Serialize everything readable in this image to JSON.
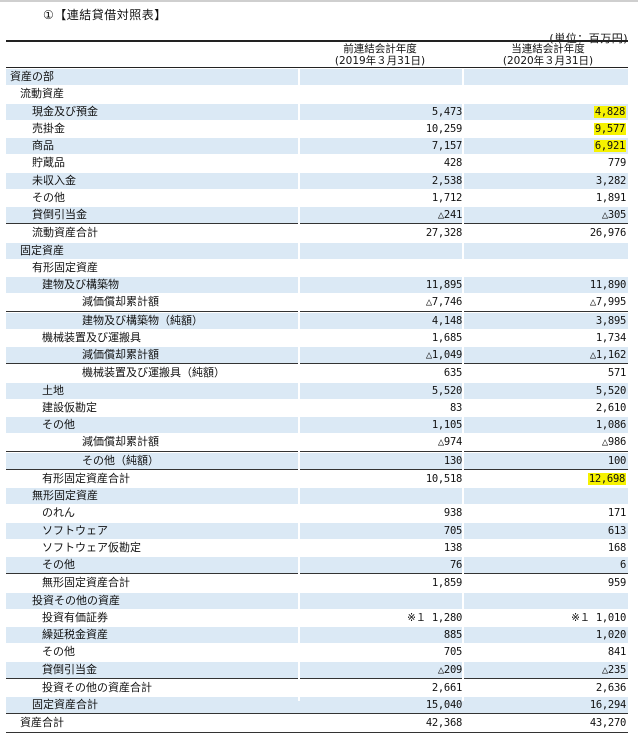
{
  "title": "①【連結貸借対照表】",
  "unit": "(単位：百万円)",
  "headers": {
    "prev_line1": "前連結会計年度",
    "prev_line2": "(2019年３月31日)",
    "curr_line1": "当連結会計年度",
    "curr_line2": "(2020年３月31日)"
  },
  "rows": [
    {
      "label": "資産の部",
      "indent": 0,
      "prev": "",
      "curr": ""
    },
    {
      "label": "流動資産",
      "indent": 1,
      "prev": "",
      "curr": ""
    },
    {
      "label": "現金及び預金",
      "indent": 2,
      "prev": "5,473",
      "curr": "4,828",
      "highlight": true
    },
    {
      "label": "売掛金",
      "indent": 2,
      "prev": "10,259",
      "curr": "9,577",
      "highlight": true
    },
    {
      "label": "商品",
      "indent": 2,
      "prev": "7,157",
      "curr": "6,921",
      "highlight": true
    },
    {
      "label": "貯蔵品",
      "indent": 2,
      "prev": "428",
      "curr": "779"
    },
    {
      "label": "未収入金",
      "indent": 2,
      "prev": "2,538",
      "curr": "3,282"
    },
    {
      "label": "その他",
      "indent": 2,
      "prev": "1,712",
      "curr": "1,891"
    },
    {
      "label": "貸倒引当金",
      "indent": 2,
      "prev": "△241",
      "curr": "△305",
      "bottom": true
    },
    {
      "label": "流動資産合計",
      "indent": 2,
      "prev": "27,328",
      "curr": "26,976"
    },
    {
      "label": "固定資産",
      "indent": 1,
      "prev": "",
      "curr": ""
    },
    {
      "label": "有形固定資産",
      "indent": 2,
      "prev": "",
      "curr": ""
    },
    {
      "label": "建物及び構築物",
      "indent": 3,
      "prev": "11,895",
      "curr": "11,890"
    },
    {
      "label": "減価償却累計額",
      "indent": 4,
      "prev": "△7,746",
      "curr": "△7,995",
      "bottom": true
    },
    {
      "label": "建物及び構築物（純額）",
      "indent": 4,
      "prev": "4,148",
      "curr": "3,895"
    },
    {
      "label": "機械装置及び運搬具",
      "indent": 3,
      "prev": "1,685",
      "curr": "1,734"
    },
    {
      "label": "減価償却累計額",
      "indent": 4,
      "prev": "△1,049",
      "curr": "△1,162",
      "bottom": true
    },
    {
      "label": "機械装置及び運搬具（純額）",
      "indent": 4,
      "prev": "635",
      "curr": "571"
    },
    {
      "label": "土地",
      "indent": 3,
      "prev": "5,520",
      "curr": "5,520"
    },
    {
      "label": "建設仮勘定",
      "indent": 3,
      "prev": "83",
      "curr": "2,610"
    },
    {
      "label": "その他",
      "indent": 3,
      "prev": "1,105",
      "curr": "1,086"
    },
    {
      "label": "減価償却累計額",
      "indent": 4,
      "prev": "△974",
      "curr": "△986",
      "bottom": true
    },
    {
      "label": "その他（純額）",
      "indent": 4,
      "prev": "130",
      "curr": "100",
      "bottom": true
    },
    {
      "label": "有形固定資産合計",
      "indent": 3,
      "prev": "10,518",
      "curr": "12,698",
      "highlight": true
    },
    {
      "label": "無形固定資産",
      "indent": 2,
      "prev": "",
      "curr": ""
    },
    {
      "label": "のれん",
      "indent": 3,
      "prev": "938",
      "curr": "171"
    },
    {
      "label": "ソフトウェア",
      "indent": 3,
      "prev": "705",
      "curr": "613"
    },
    {
      "label": "ソフトウェア仮勘定",
      "indent": 3,
      "prev": "138",
      "curr": "168"
    },
    {
      "label": "その他",
      "indent": 3,
      "prev": "76",
      "curr": "6",
      "bottom": true
    },
    {
      "label": "無形固定資産合計",
      "indent": 3,
      "prev": "1,859",
      "curr": "959"
    },
    {
      "label": "投資その他の資産",
      "indent": 2,
      "prev": "",
      "curr": ""
    },
    {
      "label": "投資有価証券",
      "indent": 3,
      "prev": "※１ 1,280",
      "curr": "※１ 1,010"
    },
    {
      "label": "繰延税金資産",
      "indent": 3,
      "prev": "885",
      "curr": "1,020"
    },
    {
      "label": "その他",
      "indent": 3,
      "prev": "705",
      "curr": "841"
    },
    {
      "label": "貸倒引当金",
      "indent": 3,
      "prev": "△209",
      "curr": "△235",
      "bottom": true
    },
    {
      "label": "投資その他の資産合計",
      "indent": 3,
      "prev": "2,661",
      "curr": "2,636"
    },
    {
      "label": "固定資産合計",
      "indent": 2,
      "prev": "15,040",
      "curr": "16,294",
      "bottom": true
    },
    {
      "label": "資産合計",
      "indent": 1,
      "prev": "42,368",
      "curr": "43,270",
      "bottom": true
    }
  ]
}
